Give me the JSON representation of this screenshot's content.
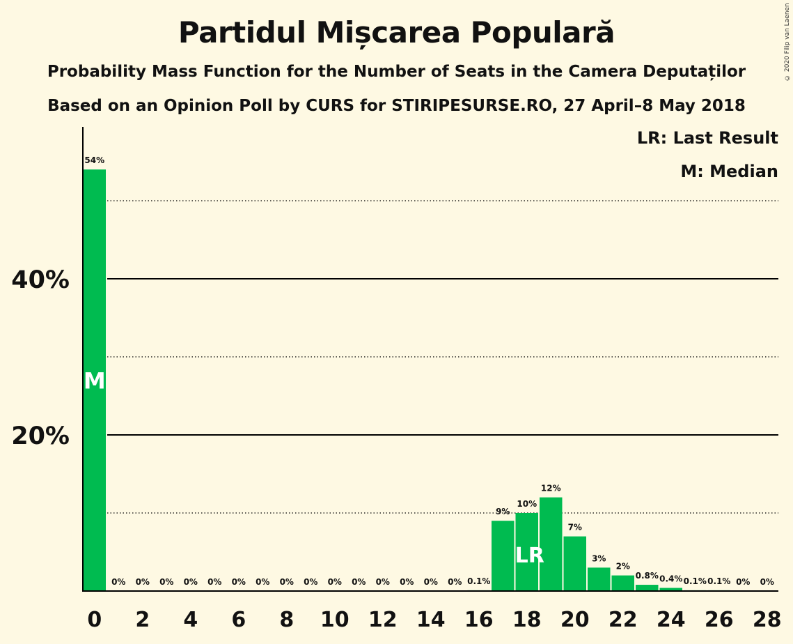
{
  "title": "Partidul Mișcarea Populară",
  "subtitle": "Probability Mass Function for the Number of Seats in the Camera Deputaților",
  "subtitle2": "Based on an Opinion Poll by CURS for STIRIPESURSE.RO, 27 April–8 May 2018",
  "copyright": "© 2020 Filip van Laenen",
  "legend": {
    "last_result": "LR: Last Result",
    "median": "M: Median"
  },
  "colors": {
    "bar": "#00bb50",
    "background": "#fef9e3",
    "axis": "#000000"
  },
  "chart_data": {
    "type": "bar",
    "x": [
      0,
      1,
      2,
      3,
      4,
      5,
      6,
      7,
      8,
      9,
      10,
      11,
      12,
      13,
      14,
      15,
      16,
      17,
      18,
      19,
      20,
      21,
      22,
      23,
      24,
      25,
      26,
      27,
      28
    ],
    "values": [
      54,
      0,
      0,
      0,
      0,
      0,
      0,
      0,
      0,
      0,
      0,
      0,
      0,
      0,
      0,
      0,
      0.1,
      9,
      10,
      12,
      7,
      3,
      2,
      0.8,
      0.4,
      0.1,
      0.1,
      0,
      0
    ],
    "labels": [
      "54%",
      "0%",
      "0%",
      "0%",
      "0%",
      "0%",
      "0%",
      "0%",
      "0%",
      "0%",
      "0%",
      "0%",
      "0%",
      "0%",
      "0%",
      "0%",
      "0.1%",
      "9%",
      "10%",
      "12%",
      "7%",
      "3%",
      "2%",
      "0.8%",
      "0.4%",
      "0.1%",
      "0.1%",
      "0%",
      "0%"
    ],
    "x_ticks": [
      0,
      2,
      4,
      6,
      8,
      10,
      12,
      14,
      16,
      18,
      20,
      22,
      24,
      26,
      28
    ],
    "y_ticks": [
      {
        "value": 20,
        "label": "20%"
      },
      {
        "value": 40,
        "label": "40%"
      }
    ],
    "y_gridlines_solid": [
      20,
      40
    ],
    "y_gridlines_dotted": [
      10,
      30,
      50
    ],
    "ylim": [
      0,
      59
    ],
    "median": {
      "x": 0,
      "label": "M"
    },
    "last_result": {
      "x": 18,
      "label": "LR"
    }
  }
}
